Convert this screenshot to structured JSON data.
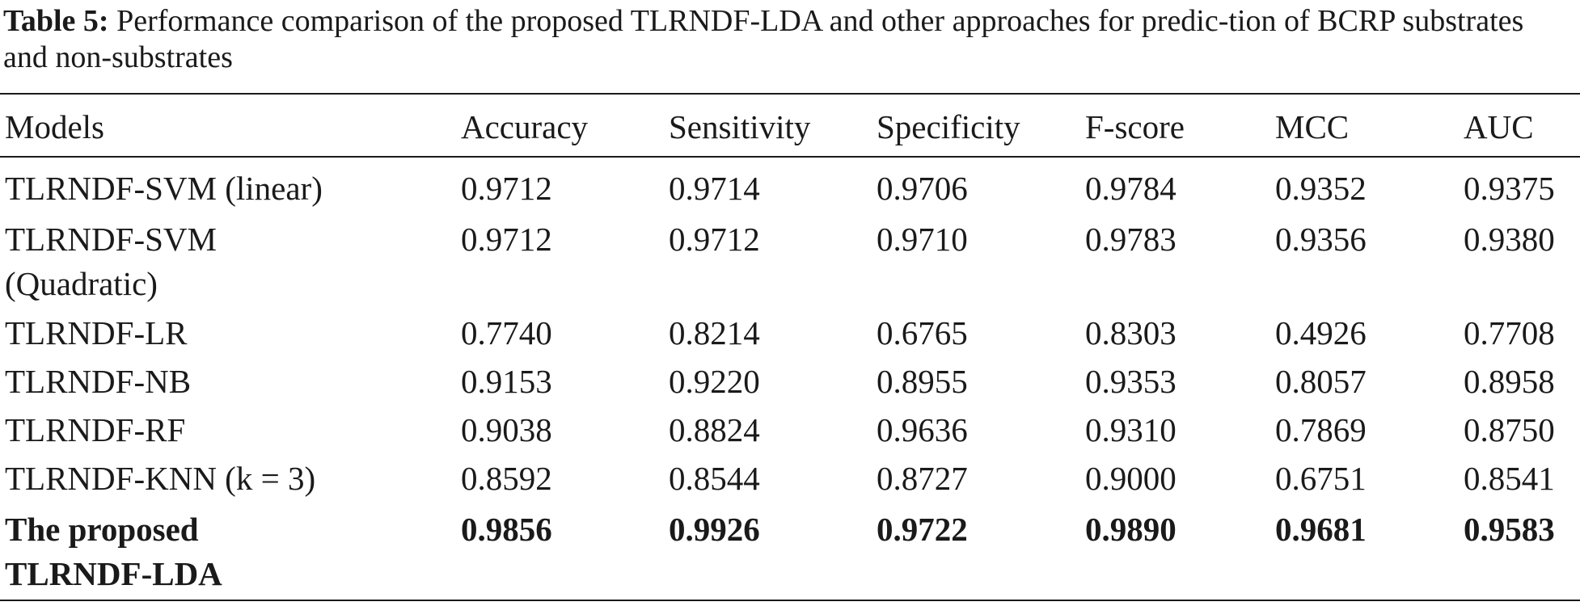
{
  "caption": {
    "label": "Table 5:",
    "text": " Performance comparison of the proposed TLRNDF-LDA and other approaches for predic-tion of BCRP substrates and non-substrates"
  },
  "table": {
    "headers": [
      "Models",
      "Accuracy",
      "Sensitivity",
      "Specificity",
      "F-score",
      "MCC",
      "AUC"
    ],
    "rows": [
      {
        "model_line1": "TLRNDF-SVM (linear)",
        "model_line2": "",
        "values": [
          "0.9712",
          "0.9714",
          "0.9706",
          "0.9784",
          "0.9352",
          "0.9375"
        ]
      },
      {
        "model_line1": "TLRNDF-SVM",
        "model_line2": "(Quadratic)",
        "values": [
          "0.9712",
          "0.9712",
          "0.9710",
          "0.9783",
          "0.9356",
          "0.9380"
        ]
      },
      {
        "model_line1": "TLRNDF-LR",
        "model_line2": "",
        "values": [
          "0.7740",
          "0.8214",
          "0.6765",
          "0.8303",
          "0.4926",
          "0.7708"
        ]
      },
      {
        "model_line1": "TLRNDF-NB",
        "model_line2": "",
        "values": [
          "0.9153",
          "0.9220",
          "0.8955",
          "0.9353",
          "0.8057",
          "0.8958"
        ]
      },
      {
        "model_line1": "TLRNDF-RF",
        "model_line2": "",
        "values": [
          "0.9038",
          "0.8824",
          "0.9636",
          "0.9310",
          "0.7869",
          "0.8750"
        ]
      },
      {
        "model_line1": "TLRNDF-KNN (k = 3)",
        "model_line2": "",
        "values": [
          "0.8592",
          "0.8544",
          "0.8727",
          "0.9000",
          "0.6751",
          "0.8541"
        ]
      },
      {
        "model_line1": "The proposed",
        "model_line2": "TLRNDF-LDA",
        "values": [
          "0.9856",
          "0.9926",
          "0.9722",
          "0.9890",
          "0.9681",
          "0.9583"
        ]
      }
    ]
  }
}
